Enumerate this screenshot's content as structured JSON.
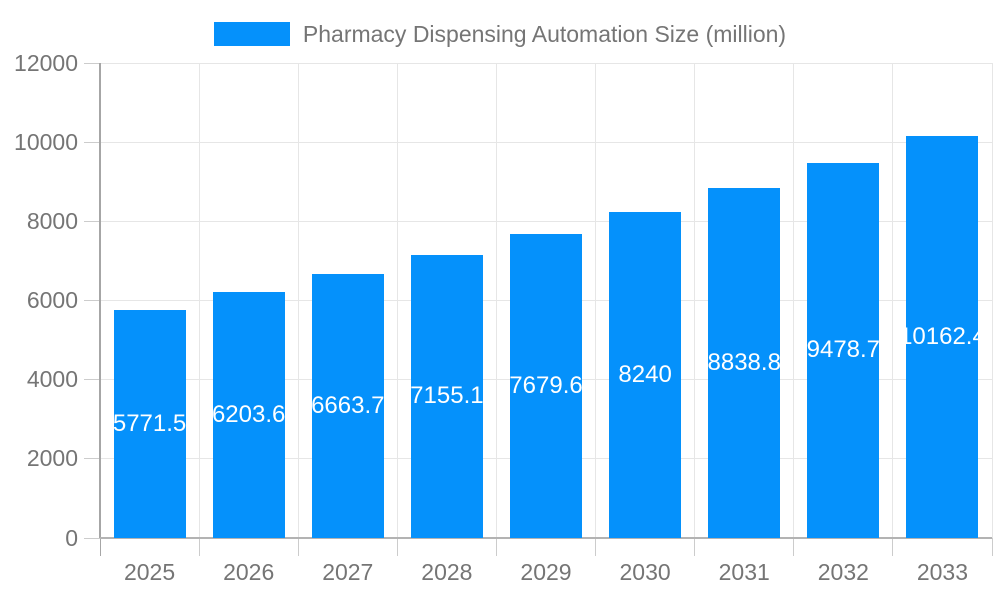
{
  "legend": {
    "label": "Pharmacy Dispensing Automation Size (million)"
  },
  "chart_data": {
    "type": "bar",
    "title": "Pharmacy Dispensing Automation Size (million)",
    "categories": [
      "2025",
      "2026",
      "2027",
      "2028",
      "2029",
      "2030",
      "2031",
      "2032",
      "2033"
    ],
    "values": [
      5771.5,
      6203.6,
      6663.7,
      7155.1,
      7679.6,
      8240,
      8838.8,
      9478.7,
      10162.4
    ],
    "value_labels": [
      "5771.5",
      "6203.6",
      "6663.7",
      "7155.1",
      "7679.6",
      "8240",
      "8838.8",
      "9478.7",
      "10162.4"
    ],
    "xlabel": "",
    "ylabel": "",
    "ylim": [
      0,
      12000
    ],
    "yticks": [
      0,
      2000,
      4000,
      6000,
      8000,
      10000,
      12000
    ],
    "grid": true,
    "legend_position": "top",
    "value_label_position": "inside-center",
    "colors": {
      "bar": "#0591fb",
      "value_text": "#ffffff",
      "axis_text": "#757575",
      "legend_text": "#757575",
      "gridline": "#e6e6e6",
      "axis_line": "#a6a6a6",
      "baseline": "#b3b3b3",
      "tick": "#cccccc",
      "background": "#ffffff"
    }
  }
}
